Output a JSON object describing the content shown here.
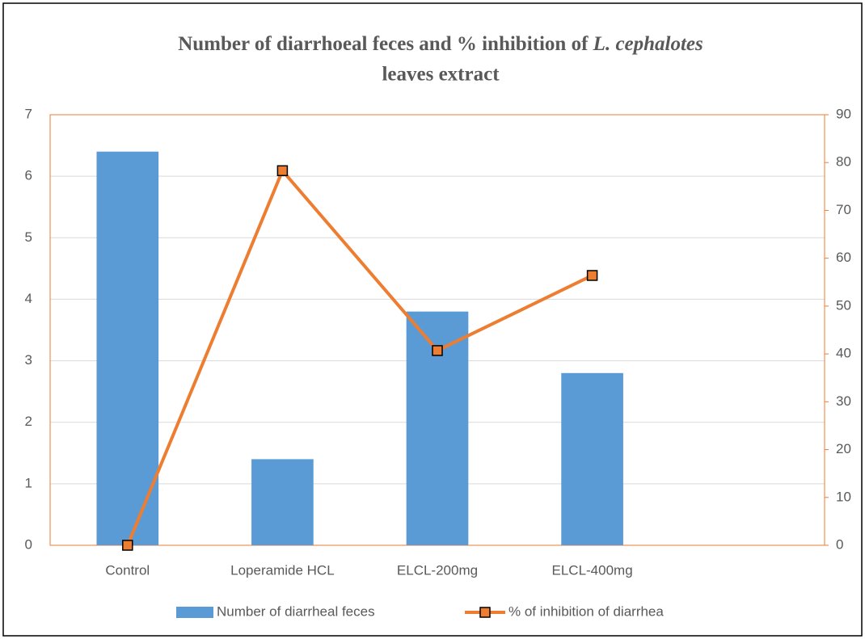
{
  "chart_data": {
    "type": "bar_line",
    "title": [
      "Number of diarrhoeal feces and % inhibition of",
      "L. cephalotes",
      "leaves extract"
    ],
    "categories": [
      "Control",
      "Loperamide HCL",
      "ELCL-200mg",
      "ELCL-400mg",
      null
    ],
    "series": [
      {
        "name": "Number of diarrheal feces",
        "type": "bar",
        "color": "#5b9bd5",
        "values": [
          6.4,
          1.4,
          3.8,
          2.8,
          null
        ]
      },
      {
        "name": "% of inhibition of diarrhea",
        "type": "line",
        "axis": "y2",
        "color": "#ed7d31",
        "values": [
          0,
          78.3,
          40.7,
          56.4,
          null
        ]
      }
    ],
    "ylim": [
      0,
      7
    ],
    "yticks": [
      0,
      1,
      2,
      3,
      4,
      5,
      6,
      7
    ],
    "y2lim": [
      0,
      90
    ],
    "y2ticks": [
      0,
      10,
      20,
      30,
      40,
      50,
      60,
      70,
      80,
      90
    ],
    "grid": true,
    "legend": "bottom"
  }
}
